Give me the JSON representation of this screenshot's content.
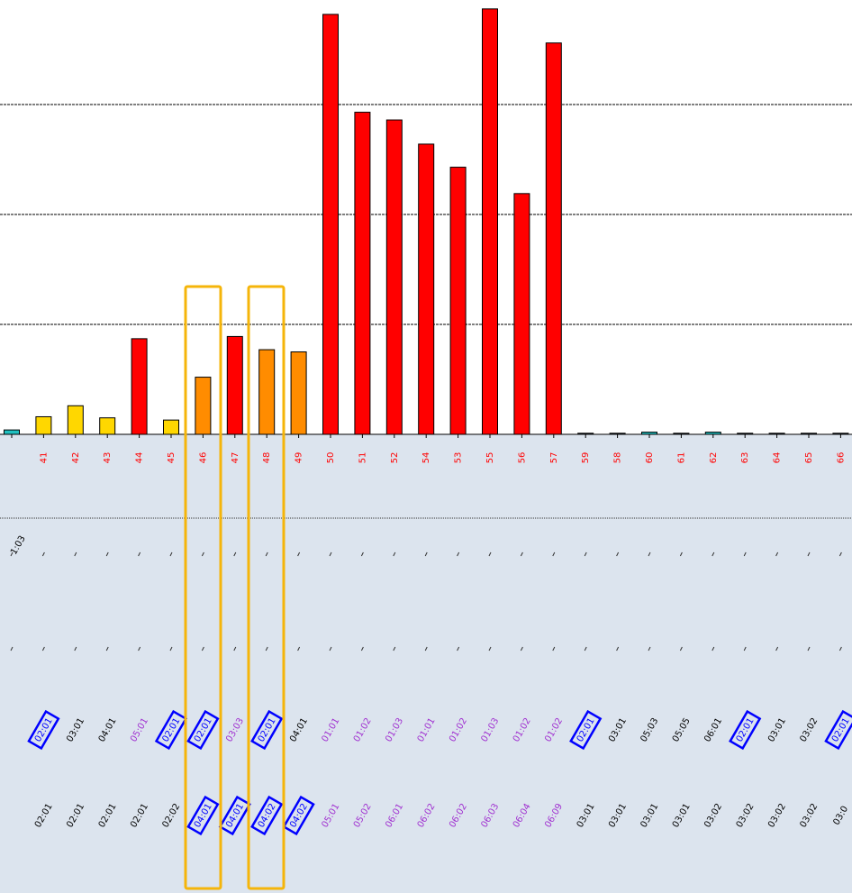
{
  "chart_data": {
    "type": "bar",
    "categories": [
      null,
      "41",
      "42",
      "43",
      "44",
      "45",
      "46",
      "47",
      "48",
      "49",
      "50",
      "51",
      "52",
      "54",
      "53",
      "55",
      "56",
      "57",
      "59",
      "58",
      "60",
      "61",
      "62",
      "63",
      "64",
      "65",
      "66"
    ],
    "values": [
      0.04,
      0.16,
      0.26,
      0.15,
      0.87,
      0.13,
      0.52,
      0.89,
      0.77,
      0.75,
      3.82,
      2.93,
      2.86,
      2.64,
      2.43,
      3.87,
      2.19,
      3.56,
      0.01,
      0.01,
      0.02,
      0.01,
      0.02,
      0.01,
      0.01,
      0.01,
      0.01
    ],
    "colors": [
      "#20c0c0",
      "#ffd700",
      "#ffd700",
      "#ffd700",
      "#ff0000",
      "#ffd700",
      "#ff8c00",
      "#ff0000",
      "#ff8c00",
      "#ff8c00",
      "#ff0000",
      "#ff0000",
      "#ff0000",
      "#ff0000",
      "#ff0000",
      "#ff0000",
      "#ff0000",
      "#ff0000",
      "#203040",
      "#203040",
      "#20c0c0",
      "#203040",
      "#20c0c0",
      "#203040",
      "#203040",
      "#203040",
      "#203040"
    ],
    "category_color": "#ff0000",
    "ylim": [
      0,
      4
    ],
    "yticks": [
      1,
      2,
      3
    ],
    "grid": true,
    "top_row_label": "1:03",
    "style_colors": {
      "plain": "#000000",
      "purple": "#a030d0",
      "boxed": "#0000ff"
    },
    "label_rows": [
      [
        null,
        {
          "text": "02:01",
          "style": "boxed"
        },
        {
          "text": "03:01",
          "style": "plain"
        },
        {
          "text": "04:01",
          "style": "plain"
        },
        {
          "text": "05:01",
          "style": "purple"
        },
        {
          "text": "02:01",
          "style": "boxed"
        },
        {
          "text": "02:01",
          "style": "boxed"
        },
        {
          "text": "03:03",
          "style": "purple"
        },
        {
          "text": "02:01",
          "style": "boxed"
        },
        {
          "text": "04:01",
          "style": "plain"
        },
        {
          "text": "01:01",
          "style": "purple"
        },
        {
          "text": "01:02",
          "style": "purple"
        },
        {
          "text": "01:03",
          "style": "purple"
        },
        {
          "text": "01:01",
          "style": "purple"
        },
        {
          "text": "01:02",
          "style": "purple"
        },
        {
          "text": "01:03",
          "style": "purple"
        },
        {
          "text": "01:02",
          "style": "purple"
        },
        {
          "text": "01:02",
          "style": "purple"
        },
        {
          "text": "02:01",
          "style": "boxed"
        },
        {
          "text": "03:01",
          "style": "plain"
        },
        {
          "text": "05:03",
          "style": "plain"
        },
        {
          "text": "05:05",
          "style": "plain"
        },
        {
          "text": "06:01",
          "style": "plain"
        },
        {
          "text": "02:01",
          "style": "boxed"
        },
        {
          "text": "03:01",
          "style": "plain"
        },
        {
          "text": "03:02",
          "style": "plain"
        },
        {
          "text": "02:01",
          "style": "boxed"
        }
      ],
      [
        null,
        {
          "text": "02:01",
          "style": "plain"
        },
        {
          "text": "02:01",
          "style": "plain"
        },
        {
          "text": "02:01",
          "style": "plain"
        },
        {
          "text": "02:01",
          "style": "plain"
        },
        {
          "text": "02:02",
          "style": "plain"
        },
        {
          "text": "04:01",
          "style": "boxed"
        },
        {
          "text": "04:01",
          "style": "boxed"
        },
        {
          "text": "04:02",
          "style": "boxed"
        },
        {
          "text": "04:02",
          "style": "boxed"
        },
        {
          "text": "05:01",
          "style": "purple"
        },
        {
          "text": "05:02",
          "style": "purple"
        },
        {
          "text": "06:01",
          "style": "purple"
        },
        {
          "text": "06:02",
          "style": "purple"
        },
        {
          "text": "06:02",
          "style": "purple"
        },
        {
          "text": "06:03",
          "style": "purple"
        },
        {
          "text": "06:04",
          "style": "purple"
        },
        {
          "text": "06:09",
          "style": "purple"
        },
        {
          "text": "03:01",
          "style": "plain"
        },
        {
          "text": "03:01",
          "style": "plain"
        },
        {
          "text": "03:01",
          "style": "plain"
        },
        {
          "text": "03:01",
          "style": "plain"
        },
        {
          "text": "03:02",
          "style": "plain"
        },
        {
          "text": "03:02",
          "style": "plain"
        },
        {
          "text": "03:02",
          "style": "plain"
        },
        {
          "text": "03:02",
          "style": "plain"
        },
        {
          "text": "03:0",
          "style": "plain"
        }
      ]
    ]
  }
}
